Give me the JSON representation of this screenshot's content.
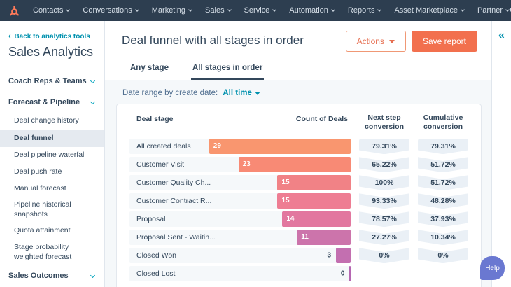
{
  "topnav": {
    "items": [
      "Contacts",
      "Conversations",
      "Marketing",
      "Sales",
      "Service",
      "Automation",
      "Reports",
      "Asset Marketplace",
      "Partner"
    ],
    "colors": {
      "background": "#2d3e50",
      "logo_orange": "#ff7a59"
    }
  },
  "sidebar": {
    "back_link": "Back to analytics tools",
    "title": "Sales Analytics",
    "sections": [
      {
        "label": "Coach Reps & Teams",
        "items": []
      },
      {
        "label": "Forecast & Pipeline",
        "items": [
          {
            "label": "Deal change history",
            "active": false
          },
          {
            "label": "Deal funnel",
            "active": true
          },
          {
            "label": "Deal pipeline waterfall",
            "active": false
          },
          {
            "label": "Deal push rate",
            "active": false
          },
          {
            "label": "Manual forecast",
            "active": false
          },
          {
            "label": "Pipeline historical snapshots",
            "active": false
          },
          {
            "label": "Quota attainment",
            "active": false
          },
          {
            "label": "Stage probability weighted forecast",
            "active": false
          }
        ]
      },
      {
        "label": "Sales Outcomes",
        "items": []
      }
    ]
  },
  "header": {
    "title": "Deal funnel with all stages in order",
    "actions_button": "Actions",
    "save_button": "Save report",
    "tabs": [
      {
        "label": "Any stage",
        "active": false
      },
      {
        "label": "All stages in order",
        "active": true
      }
    ]
  },
  "filters": {
    "date_label": "Date range by create date:",
    "date_value": "All time"
  },
  "chart_data": {
    "type": "funnel-table",
    "title": "Deal funnel with all stages in order",
    "columns": [
      "Deal stage",
      "Count of Deals",
      "Next step conversion",
      "Cumulative conversion"
    ],
    "max_count": 29,
    "bar_color_range": [
      "#f9966f",
      "#b566b2"
    ],
    "badge_color": "#eaf0f6",
    "rows": [
      {
        "stage": "All created deals",
        "count": 29,
        "next_step": "79.31%",
        "cumulative": "79.31%",
        "color": "#f9966f"
      },
      {
        "stage": "Customer Visit",
        "count": 23,
        "next_step": "65.22%",
        "cumulative": "51.72%",
        "color": "#f88a75"
      },
      {
        "stage": "Customer Quality Ch...",
        "count": 15,
        "next_step": "100%",
        "cumulative": "51.72%",
        "color": "#f18286"
      },
      {
        "stage": "Customer Contract R...",
        "count": 15,
        "next_step": "93.33%",
        "cumulative": "48.28%",
        "color": "#ee7d93"
      },
      {
        "stage": "Proposal",
        "count": 14,
        "next_step": "78.57%",
        "cumulative": "37.93%",
        "color": "#e2779f"
      },
      {
        "stage": "Proposal Sent - Waitin...",
        "count": 11,
        "next_step": "27.27%",
        "cumulative": "10.34%",
        "color": "#cc74ab"
      },
      {
        "stage": "Closed Won",
        "count": 3,
        "next_step": "0%",
        "cumulative": "0%",
        "color": "#c36fb0"
      },
      {
        "stage": "Closed Lost",
        "count": 0,
        "next_step": null,
        "cumulative": null,
        "color": "#b566b2"
      }
    ]
  },
  "collapse_icon": "«",
  "help_button": "Help"
}
